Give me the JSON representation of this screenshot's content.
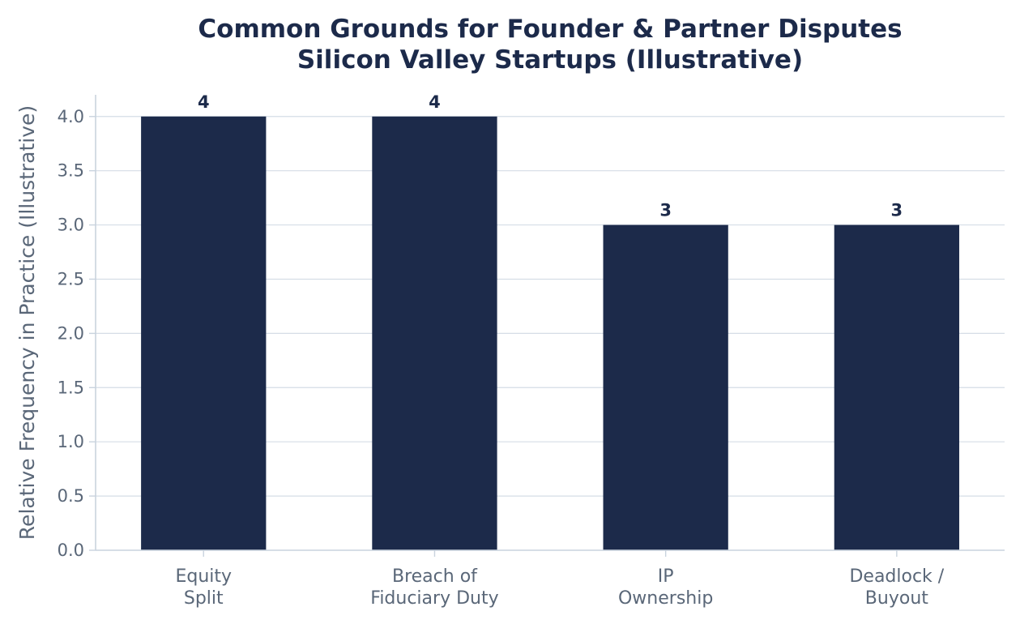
{
  "chart_data": {
    "type": "bar",
    "title": "Common Grounds for Founder & Partner Disputes",
    "subtitle": "Silicon Valley Startups (Illustrative)",
    "xlabel": "",
    "ylabel": "Relative Frequency in Practice (Illustrative)",
    "categories": [
      [
        "Equity",
        "Split"
      ],
      [
        "Breach of",
        "Fiduciary Duty"
      ],
      [
        "IP",
        "Ownership"
      ],
      [
        "Deadlock /",
        "Buyout"
      ]
    ],
    "values": [
      4,
      4,
      3,
      3
    ],
    "data_labels": [
      "4",
      "4",
      "3",
      "3"
    ],
    "ylim": [
      0,
      4.2
    ],
    "yticks": [
      "0.0",
      "0.5",
      "1.0",
      "1.5",
      "2.0",
      "2.5",
      "3.0",
      "3.5",
      "4.0"
    ],
    "grid": "horizontal",
    "legend": "none",
    "colors": {
      "bar": "#1c2a4a",
      "title": "#1c2a4a",
      "grid": "#d5dde6",
      "axis": "#c9d3de",
      "tick_text": "#5a6778"
    }
  }
}
